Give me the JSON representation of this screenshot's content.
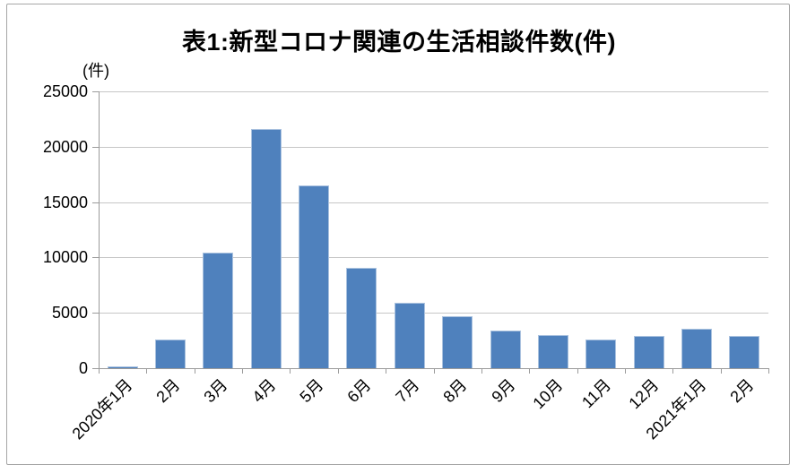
{
  "chart_data": {
    "type": "bar",
    "title": "表1:新型コロナ関連の生活相談件数(件)",
    "unit_label": "(件)",
    "categories": [
      "2020年1月",
      "2月",
      "3月",
      "4月",
      "5月",
      "6月",
      "7月",
      "8月",
      "9月",
      "10月",
      "11月",
      "12月",
      "2021年1月",
      "2月"
    ],
    "values": [
      200,
      2600,
      10400,
      21600,
      16500,
      9100,
      5900,
      4700,
      3400,
      3000,
      2600,
      2900,
      3600,
      2950
    ],
    "xlabel": "",
    "ylabel": "",
    "ylim": [
      0,
      25000
    ],
    "ytick_interval": 5000,
    "ytick_labels": [
      "0",
      "5000",
      "10000",
      "15000",
      "20000",
      "25000"
    ],
    "grid": true,
    "legend_position": "none",
    "colors": {
      "bar_fill": "#4f81bd",
      "bar_border": "#aac2df",
      "gridline": "#c6c6c6",
      "axis": "#9b9b9b",
      "frame_border": "#a6a6a6",
      "text": "#000000"
    }
  }
}
